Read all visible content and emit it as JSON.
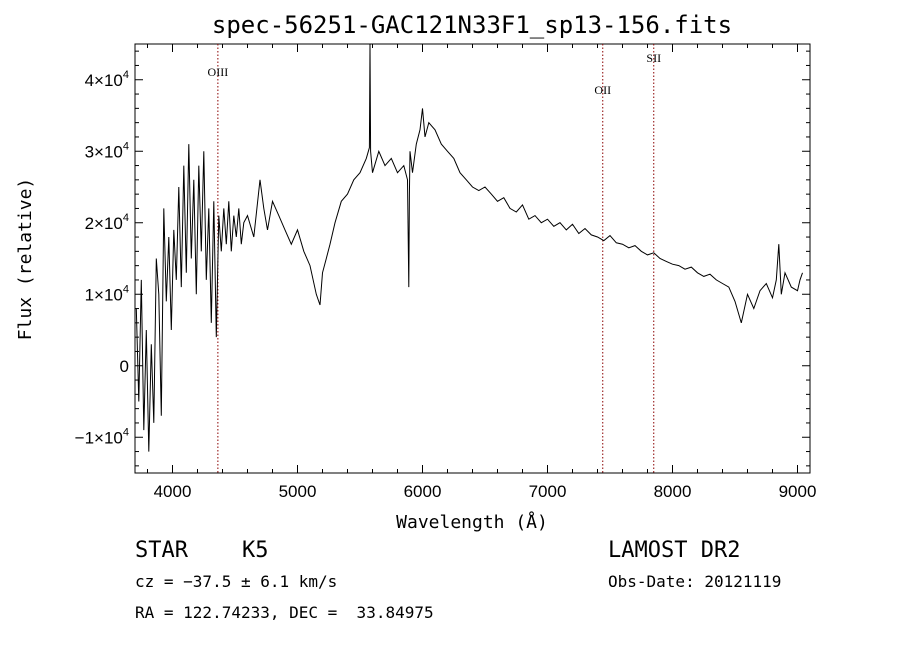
{
  "chart_data": {
    "type": "line",
    "title": "spec-56251-GAC121N33F1_sp13-156.fits",
    "xlabel": "Wavelength (Å)",
    "ylabel": "Flux (relative)",
    "xlim": [
      3700,
      9100
    ],
    "ylim": [
      -15000,
      45000
    ],
    "xticks": [
      {
        "value": 4000,
        "label": "4000"
      },
      {
        "value": 5000,
        "label": "5000"
      },
      {
        "value": 6000,
        "label": "6000"
      },
      {
        "value": 7000,
        "label": "7000"
      },
      {
        "value": 8000,
        "label": "8000"
      },
      {
        "value": 9000,
        "label": "9000"
      }
    ],
    "yticks": [
      {
        "value": -10000,
        "label": "−1×10",
        "exp": "4"
      },
      {
        "value": 0,
        "label": "0",
        "exp": ""
      },
      {
        "value": 10000,
        "label": "1×10",
        "exp": "4"
      },
      {
        "value": 20000,
        "label": "2×10",
        "exp": "4"
      },
      {
        "value": 30000,
        "label": "3×10",
        "exp": "4"
      },
      {
        "value": 40000,
        "label": "4×10",
        "exp": "4"
      }
    ],
    "grid": false,
    "series": [
      {
        "color": "#000000",
        "x": [
          3710,
          3730,
          3750,
          3770,
          3790,
          3810,
          3830,
          3850,
          3870,
          3890,
          3910,
          3930,
          3950,
          3970,
          3990,
          4010,
          4030,
          4050,
          4070,
          4090,
          4110,
          4130,
          4150,
          4170,
          4190,
          4210,
          4230,
          4250,
          4270,
          4290,
          4310,
          4330,
          4350,
          4370,
          4390,
          4410,
          4430,
          4450,
          4470,
          4490,
          4510,
          4530,
          4550,
          4570,
          4600,
          4650,
          4700,
          4730,
          4760,
          4800,
          4850,
          4900,
          4950,
          5000,
          5050,
          5100,
          5150,
          5180,
          5200,
          5230,
          5260,
          5300,
          5350,
          5400,
          5450,
          5500,
          5550,
          5575,
          5580,
          5585,
          5600,
          5650,
          5700,
          5750,
          5800,
          5850,
          5880,
          5890,
          5895,
          5900,
          5920,
          5950,
          5980,
          6000,
          6020,
          6050,
          6100,
          6150,
          6200,
          6250,
          6300,
          6350,
          6400,
          6450,
          6500,
          6550,
          6600,
          6650,
          6700,
          6750,
          6800,
          6850,
          6900,
          6950,
          7000,
          7050,
          7100,
          7150,
          7200,
          7250,
          7300,
          7350,
          7400,
          7450,
          7500,
          7550,
          7600,
          7650,
          7700,
          7750,
          7800,
          7850,
          7900,
          7950,
          8000,
          8050,
          8100,
          8150,
          8200,
          8250,
          8300,
          8350,
          8400,
          8450,
          8500,
          8550,
          8600,
          8650,
          8700,
          8750,
          8800,
          8830,
          8850,
          8870,
          8900,
          8950,
          9000,
          9020,
          9040
        ],
        "y": [
          8000,
          -5000,
          12000,
          -9000,
          5000,
          -12000,
          3000,
          -8000,
          15000,
          10000,
          -7000,
          22000,
          9000,
          18000,
          5000,
          19000,
          12000,
          25000,
          11000,
          28000,
          13000,
          31000,
          15000,
          26000,
          10000,
          28000,
          16000,
          30000,
          12000,
          22000,
          6000,
          23000,
          4000,
          21000,
          16000,
          22000,
          17000,
          23000,
          16000,
          21000,
          18000,
          22000,
          17000,
          20000,
          21000,
          18000,
          26000,
          22000,
          19000,
          23000,
          21000,
          19000,
          17000,
          19000,
          16000,
          14000,
          10000,
          8500,
          13000,
          15000,
          17000,
          20000,
          23000,
          24000,
          26000,
          27000,
          29000,
          30500,
          45000,
          30000,
          27000,
          30000,
          28000,
          29000,
          27000,
          28000,
          26000,
          11000,
          24000,
          30000,
          27000,
          31000,
          33000,
          36000,
          32000,
          34000,
          33000,
          31000,
          30000,
          29000,
          27000,
          26000,
          25000,
          24500,
          25000,
          24000,
          23000,
          23500,
          22000,
          21500,
          22500,
          20500,
          21000,
          20000,
          20500,
          19500,
          20000,
          19000,
          19800,
          18500,
          19200,
          18300,
          18000,
          17500,
          18200,
          17200,
          17000,
          16500,
          16800,
          16000,
          15500,
          15800,
          15000,
          14600,
          14200,
          14000,
          13500,
          13800,
          13000,
          12500,
          12800,
          12000,
          11500,
          11000,
          9000,
          6000,
          10000,
          8000,
          10500,
          11500,
          9500,
          12000,
          17000,
          10000,
          13000,
          11000,
          10500,
          12000,
          13000
        ]
      }
    ],
    "lines": [
      {
        "x": 4363,
        "label": "OIII",
        "label_y": 40500,
        "color": "#8b0000"
      },
      {
        "x": 7442,
        "label": "OII",
        "label_y": 38000,
        "color": "#8b0000"
      },
      {
        "x": 7850,
        "label": "SII",
        "label_y": 42500,
        "color": "#8b0000"
      }
    ]
  },
  "info": {
    "class_label": "STAR",
    "subclass": "K5",
    "survey": "LAMOST DR2",
    "cz": "cz = −37.5 ± 6.1 km/s",
    "obs_date": "Obs-Date: 20121119",
    "coords": "RA = 122.74233, DEC =  33.84975"
  }
}
